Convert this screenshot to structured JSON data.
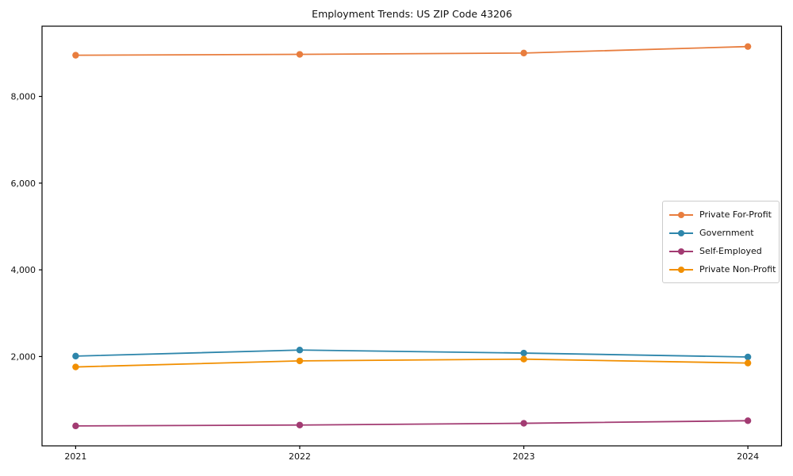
{
  "chart_data": {
    "type": "line",
    "title": "Employment Trends: US ZIP Code 43206",
    "xlabel": "",
    "ylabel": "",
    "x": [
      2021,
      2022,
      2023,
      2024
    ],
    "x_tick_labels": [
      "2021",
      "2022",
      "2023",
      "2024"
    ],
    "y_ticks": [
      2000,
      4000,
      6000,
      8000
    ],
    "y_tick_labels": [
      "2,000",
      "4,000",
      "6,000",
      "8,000"
    ],
    "xlim": [
      2020.85,
      2024.15
    ],
    "ylim": [
      -60,
      9620
    ],
    "grid": false,
    "legend_position": "center-right",
    "marker": "circle",
    "series": [
      {
        "name": "Private For-Profit",
        "color": "#e87d3e",
        "values": [
          8950,
          8970,
          9000,
          9150
        ]
      },
      {
        "name": "Government",
        "color": "#2e86ab",
        "values": [
          2010,
          2150,
          2080,
          1990
        ]
      },
      {
        "name": "Self-Employed",
        "color": "#a23b72",
        "values": [
          400,
          420,
          460,
          520
        ]
      },
      {
        "name": "Private Non-Profit",
        "color": "#f18f01",
        "values": [
          1760,
          1900,
          1940,
          1850
        ]
      }
    ]
  }
}
